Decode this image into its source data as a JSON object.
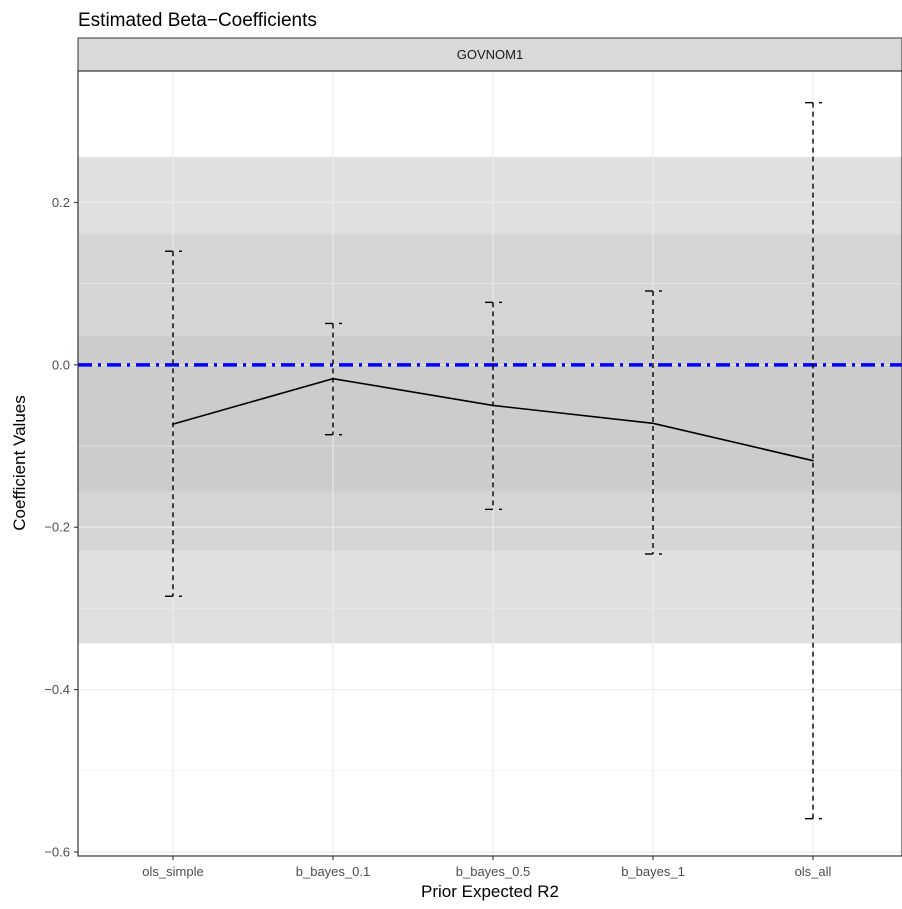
{
  "chart_data": {
    "type": "line",
    "title": "Estimated Beta−Coefficients",
    "facet_label": "GOVNOM1",
    "xlabel": "Prior Expected R2",
    "ylabel": "Coefficient Values",
    "categories": [
      "ols_simple",
      "b_bayes_0.1",
      "b_bayes_0.5",
      "b_bayes_1",
      "ols_all"
    ],
    "estimates": [
      -0.073,
      -0.017,
      -0.05,
      -0.072,
      -0.118
    ],
    "intervals": [
      {
        "lower": -0.285,
        "upper": 0.14
      },
      {
        "lower": -0.086,
        "upper": 0.051
      },
      {
        "lower": -0.178,
        "upper": 0.077
      },
      {
        "lower": -0.233,
        "upper": 0.091
      },
      {
        "lower": -0.559,
        "upper": 0.323
      }
    ],
    "reference_line": {
      "y": 0,
      "color": "#0000ff",
      "style": "dot-dash"
    },
    "shaded_bands": [
      {
        "lower": -0.343,
        "upper": 0.256,
        "color": "#e0e0e0"
      },
      {
        "lower": -0.229,
        "upper": 0.161,
        "color": "#d5d5d5"
      },
      {
        "lower": -0.156,
        "upper": 0.035,
        "color": "#cccccc"
      }
    ],
    "y_ticks": [
      {
        "value": 0.2,
        "label": "0.2"
      },
      {
        "value": 0.0,
        "label": "0.0"
      },
      {
        "value": -0.2,
        "label": "−0.2"
      },
      {
        "value": -0.4,
        "label": "−0.4"
      },
      {
        "value": -0.6,
        "label": "−0.6"
      }
    ],
    "ylim": [
      -0.605,
      0.362
    ],
    "grid": true,
    "legend": "none"
  }
}
